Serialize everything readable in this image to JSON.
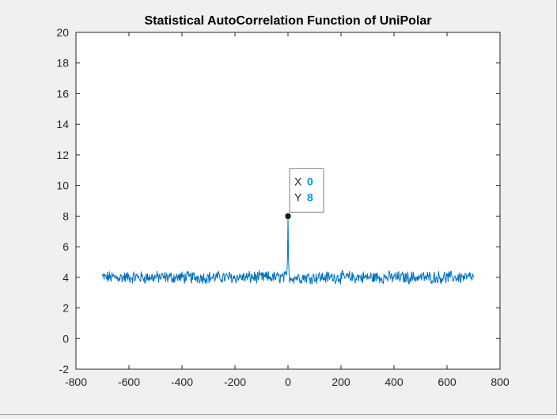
{
  "chart_data": {
    "type": "line",
    "title": "Statistical AutoCorrelation Function of UniPolar",
    "xlabel": "",
    "ylabel": "",
    "xlim": [
      -800,
      800
    ],
    "ylim": [
      -2,
      20
    ],
    "xticks": [
      "-800",
      "-600",
      "-400",
      "-200",
      "0",
      "200",
      "400",
      "600",
      "800"
    ],
    "yticks": [
      "-2",
      "0",
      "2",
      "4",
      "6",
      "8",
      "10",
      "12",
      "14",
      "16",
      "18",
      "20"
    ],
    "grid": false,
    "series": [
      {
        "color": "#0072bd",
        "x_range": [
          -700,
          700
        ],
        "baseline": 4,
        "noise_amplitude": 0.35,
        "peak": {
          "x": 0,
          "y": 8
        }
      }
    ],
    "datatip": {
      "x_label": "X",
      "x_value": "0",
      "y_label": "Y",
      "y_value": "8",
      "value_color": "#0099e6"
    }
  },
  "colors": {
    "figure_bg": "#f0f0f0",
    "axes_bg": "#ffffff",
    "axes_edge": "#262626",
    "line": "#0072bd"
  }
}
